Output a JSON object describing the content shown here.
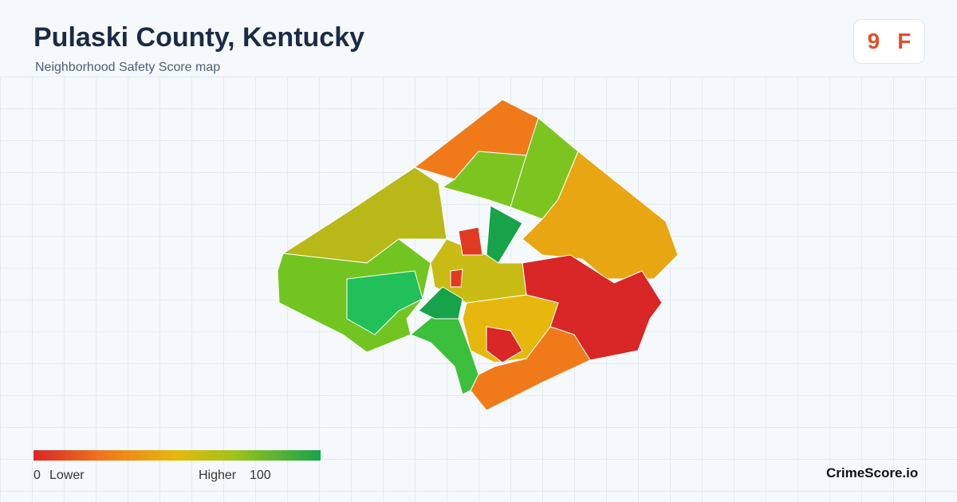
{
  "header": {
    "title": "Pulaski County, Kentucky",
    "subtitle": "Neighborhood Safety Score map"
  },
  "score": {
    "value": "9",
    "grade": "F"
  },
  "legend": {
    "min": "0",
    "min_label": "Lower",
    "max_label": "Higher",
    "max": "100"
  },
  "brand": "CrimeScore.io"
}
